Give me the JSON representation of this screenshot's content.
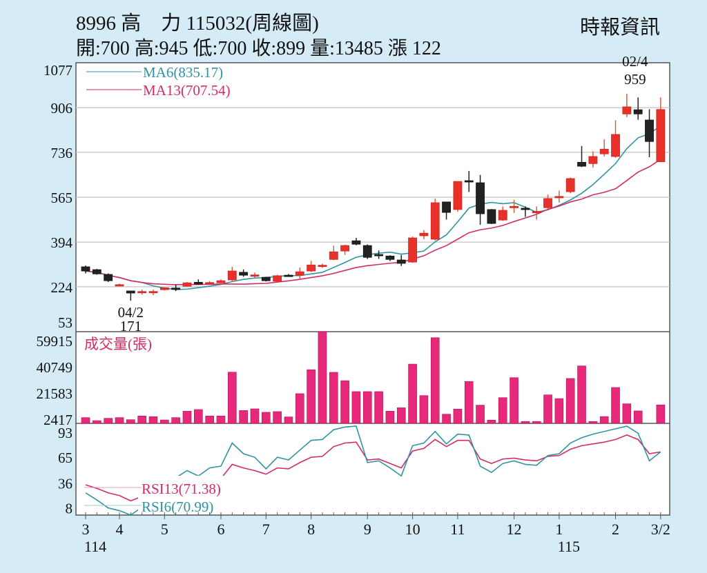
{
  "header": {
    "title": "8996 高　力 115032(周線圖)",
    "source": "時報資訊",
    "summary": "開:700 高:945 低:700 收:899 量:13485 漲 122"
  },
  "colors": {
    "up": "#e8312a",
    "down": "#222222",
    "ma6": "#2e93a3",
    "ma13": "#d42a66",
    "volume": "#e8287a",
    "bg": "#d5ecf7"
  },
  "chart_data": [
    {
      "type": "candlestick",
      "title": "Price (weekly)",
      "ylim": [
        53,
        1077
      ],
      "yticks": [
        1077,
        906,
        736,
        565,
        394,
        224,
        53
      ],
      "legend": [
        {
          "name": "MA6",
          "label": "MA6(835.17)"
        },
        {
          "name": "MA13",
          "label": "MA13(707.54)"
        }
      ],
      "annotations": [
        {
          "index": 48,
          "date": "02/4",
          "value": "959",
          "position": "above"
        },
        {
          "index": 4,
          "date": "04/2",
          "value": "171",
          "position": "below"
        }
      ],
      "ohlc": [
        [
          300,
          305,
          275,
          284
        ],
        [
          289,
          292,
          270,
          273
        ],
        [
          271,
          275,
          242,
          247
        ],
        [
          231,
          236,
          225,
          232
        ],
        [
          208,
          208,
          171,
          200
        ],
        [
          205,
          213,
          194,
          206
        ],
        [
          205,
          213,
          192,
          206
        ],
        [
          213,
          222,
          210,
          220
        ],
        [
          219,
          232,
          208,
          218
        ],
        [
          226,
          242,
          224,
          239
        ],
        [
          241,
          252,
          232,
          234
        ],
        [
          238,
          246,
          232,
          240
        ],
        [
          239,
          252,
          237,
          247
        ],
        [
          250,
          300,
          245,
          284
        ],
        [
          279,
          290,
          262,
          268
        ],
        [
          268,
          278,
          258,
          269
        ],
        [
          260,
          262,
          244,
          247
        ],
        [
          245,
          270,
          243,
          266
        ],
        [
          268,
          272,
          264,
          267
        ],
        [
          268,
          297,
          255,
          281
        ],
        [
          284,
          323,
          280,
          307
        ],
        [
          305,
          312,
          296,
          306
        ],
        [
          328,
          380,
          325,
          357
        ],
        [
          360,
          384,
          345,
          381
        ],
        [
          399,
          410,
          382,
          386
        ],
        [
          381,
          385,
          330,
          336
        ],
        [
          347,
          362,
          330,
          346
        ],
        [
          341,
          344,
          322,
          328
        ],
        [
          326,
          345,
          303,
          313
        ],
        [
          318,
          415,
          315,
          410
        ],
        [
          418,
          440,
          405,
          428
        ],
        [
          405,
          560,
          400,
          544
        ],
        [
          547,
          547,
          480,
          507
        ],
        [
          518,
          625,
          510,
          625
        ],
        [
          628,
          665,
          585,
          627
        ],
        [
          620,
          650,
          460,
          502
        ],
        [
          518,
          520,
          463,
          465
        ],
        [
          478,
          530,
          475,
          515
        ],
        [
          525,
          555,
          505,
          530
        ],
        [
          523,
          530,
          490,
          522
        ],
        [
          510,
          530,
          480,
          511
        ],
        [
          525,
          575,
          520,
          560
        ],
        [
          567,
          590,
          545,
          568
        ],
        [
          586,
          640,
          580,
          636
        ],
        [
          698,
          760,
          680,
          683
        ],
        [
          693,
          740,
          678,
          720
        ],
        [
          730,
          785,
          720,
          748
        ],
        [
          720,
          858,
          715,
          804
        ],
        [
          882,
          959,
          870,
          909
        ],
        [
          898,
          945,
          860,
          882
        ],
        [
          859,
          900,
          717,
          777
        ],
        [
          700,
          945,
          700,
          899
        ]
      ]
    },
    {
      "type": "bar",
      "title": "成交量(張)",
      "ylim": [
        0,
        67000
      ],
      "yticks": [
        59915,
        40749,
        21583,
        2417
      ],
      "values": [
        4200,
        2000,
        3700,
        4200,
        2700,
        5400,
        4900,
        2500,
        4200,
        8900,
        10100,
        5400,
        5400,
        37400,
        9400,
        10600,
        8100,
        8600,
        4700,
        21700,
        39200,
        67000,
        37300,
        31200,
        23200,
        23200,
        23200,
        8900,
        11400,
        43300,
        20300,
        62600,
        6700,
        10400,
        30600,
        13300,
        2400,
        18800,
        33400,
        1400,
        1400,
        20800,
        18100,
        32800,
        42000,
        1400,
        5000,
        26200,
        14300,
        9100,
        0,
        13485
      ]
    },
    {
      "type": "line",
      "title": "RSI",
      "ylim": [
        0,
        100
      ],
      "yticks": [
        93,
        65,
        36,
        8
      ],
      "series": [
        {
          "name": "RSI13",
          "label": "RSI13(71.38)",
          "values": [
            34,
            30,
            25,
            22,
            16,
            21,
            25,
            28,
            32,
            36,
            38,
            40,
            41,
            57,
            53,
            50,
            46,
            53,
            52,
            59,
            65,
            66,
            77,
            81,
            82,
            62,
            63,
            58,
            53,
            72,
            75,
            85,
            77,
            84,
            84,
            63,
            58,
            63,
            64,
            62,
            61,
            66,
            67,
            74,
            78,
            80,
            82,
            85,
            90,
            85,
            69,
            71
          ]
        },
        {
          "name": "RSI6",
          "label": "RSI6(70.99)",
          "values": [
            25,
            17,
            8,
            5,
            0,
            9,
            20,
            32,
            42,
            50,
            44,
            53,
            55,
            81,
            69,
            65,
            52,
            65,
            62,
            73,
            84,
            85,
            96,
            99,
            100,
            59,
            61,
            53,
            44,
            78,
            81,
            94,
            80,
            91,
            90,
            55,
            48,
            58,
            61,
            57,
            56,
            67,
            69,
            81,
            87,
            91,
            94,
            97,
            100,
            92,
            61,
            71
          ]
        }
      ]
    }
  ],
  "x_axis": {
    "ticks": [
      {
        "index": 0,
        "label": "3",
        "year": "114"
      },
      {
        "index": 3,
        "label": "4"
      },
      {
        "index": 7,
        "label": "5"
      },
      {
        "index": 12,
        "label": "6"
      },
      {
        "index": 16,
        "label": "7"
      },
      {
        "index": 20,
        "label": "8"
      },
      {
        "index": 25,
        "label": "9"
      },
      {
        "index": 29,
        "label": "10"
      },
      {
        "index": 33,
        "label": "11"
      },
      {
        "index": 38,
        "label": "12"
      },
      {
        "index": 42,
        "label": "1",
        "year": "115"
      },
      {
        "index": 47,
        "label": "2"
      },
      {
        "index": 51,
        "label": "3/2"
      }
    ]
  }
}
